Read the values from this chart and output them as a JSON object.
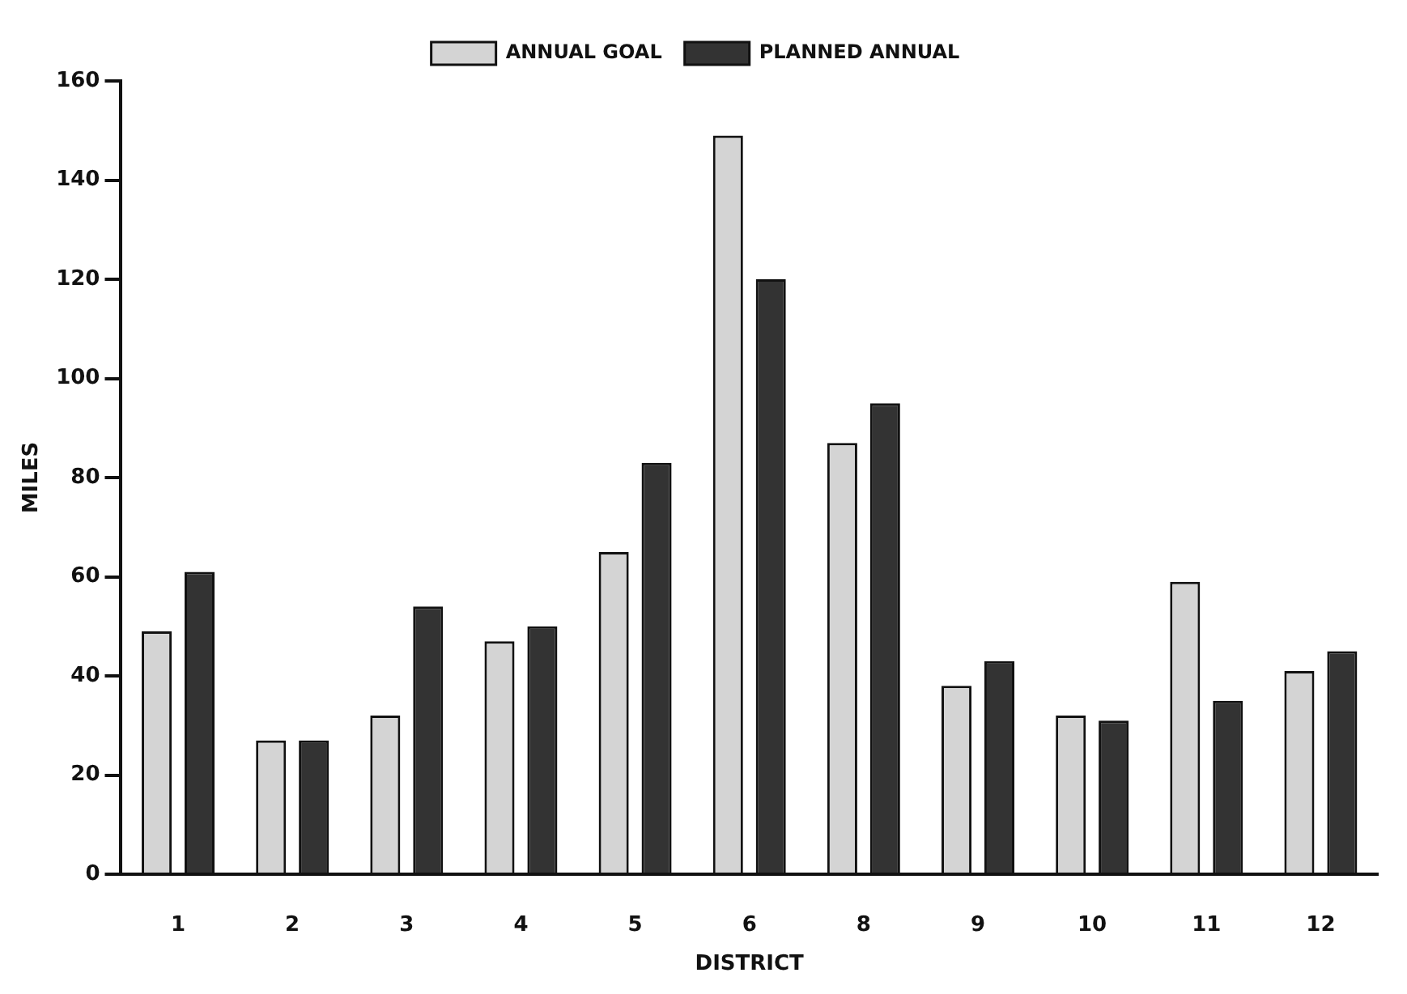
{
  "chart_data": {
    "type": "bar",
    "xlabel": "DISTRICT",
    "ylabel": "MILES",
    "categories": [
      "1",
      "2",
      "3",
      "4",
      "5",
      "6",
      "8",
      "9",
      "10",
      "11",
      "12"
    ],
    "series": [
      {
        "name": "ANNUAL GOAL",
        "color": "#d4d4d4",
        "values": [
          49,
          27,
          32,
          47,
          65,
          149,
          87,
          38,
          32,
          59,
          41
        ]
      },
      {
        "name": "PLANNED ANNUAL",
        "color": "#333333",
        "values": [
          61,
          27,
          54,
          50,
          83,
          120,
          95,
          43,
          31,
          35,
          45
        ]
      }
    ],
    "ylim": [
      0,
      160
    ],
    "yticks": [
      0,
      20,
      40,
      60,
      80,
      100,
      120,
      140,
      160
    ],
    "grid": false,
    "legend": "top"
  }
}
